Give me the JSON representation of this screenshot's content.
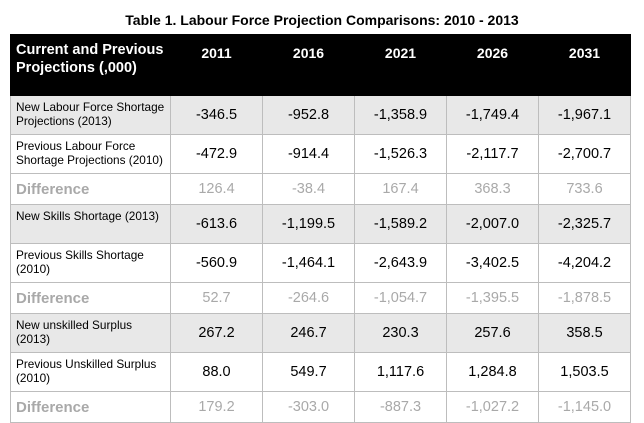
{
  "caption": "Table 1.  Labour Force Projection Comparisons:  2010 - 2013",
  "header": {
    "lead_line1": "Current and Previous",
    "lead_line2": "Projections  (,000)",
    "years": [
      "2011",
      "2016",
      "2021",
      "2026",
      "2031"
    ]
  },
  "rows": [
    {
      "label": "New Labour Force Shortage Projections (2013)",
      "values": [
        "-346.5",
        "-952.8",
        "-1,358.9",
        "-1,749.4",
        "-1,967.1"
      ]
    },
    {
      "label": "Previous Labour Force Shortage Projections (2010)",
      "values": [
        "-472.9",
        "-914.4",
        "-1,526.3",
        "-2,117.7",
        "-2,700.7"
      ]
    },
    {
      "label": "Difference",
      "values": [
        "126.4",
        "-38.4",
        "167.4",
        "368.3",
        "733.6"
      ]
    },
    {
      "label": "New Skills Shortage (2013)",
      "values": [
        "-613.6",
        "-1,199.5",
        "-1,589.2",
        "-2,007.0",
        "-2,325.7"
      ]
    },
    {
      "label": "Previous Skills Shortage (2010)",
      "values": [
        "-560.9",
        "-1,464.1",
        "-2,643.9",
        "-3,402.5",
        "-4,204.2"
      ]
    },
    {
      "label": "Difference",
      "values": [
        "52.7",
        "-264.6",
        "-1,054.7",
        "-1,395.5",
        "-1,878.5"
      ]
    },
    {
      "label": "New unskilled Surplus (2013)",
      "values": [
        "267.2",
        "246.7",
        "230.3",
        "257.6",
        "358.5"
      ]
    },
    {
      "label": "Previous Unskilled Surplus (2010)",
      "values": [
        "88.0",
        "549.7",
        "1,117.6",
        "1,284.8",
        "1,503.5"
      ]
    },
    {
      "label": "Difference",
      "values": [
        "179.2",
        "-303.0",
        "-887.3",
        "-1,027.2",
        "-1,145.0"
      ]
    }
  ],
  "colors": {
    "header_bg": "#000000",
    "shaded_row": "#e8e8e8",
    "difference_text": "#a9a9a9"
  }
}
